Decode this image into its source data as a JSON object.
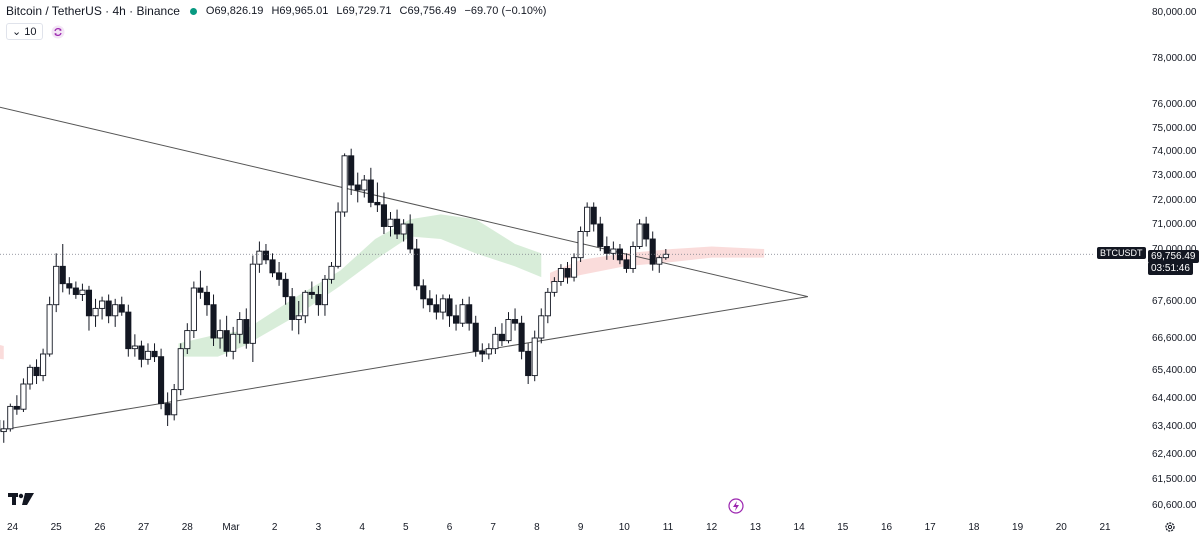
{
  "header": {
    "symbol": "Bitcoin / TetherUS · 4h · Binance",
    "o_label": "O",
    "o_value": "69,826.19",
    "h_label": "H",
    "h_value": "69,965.01",
    "l_label": "L",
    "l_value": "69,729.71",
    "c_label": "C",
    "c_value": "69,756.49",
    "change": "−69.70 (−0.10%)",
    "indicator_value": "10"
  },
  "price_tag": {
    "symbol": "BTCUSDT",
    "price": "69,756.49",
    "countdown": "03:51:46"
  },
  "colors": {
    "up": "#ffffff",
    "down": "#131722",
    "cloud_bull": "#c8e6c9",
    "cloud_bear": "#f8d0cf",
    "trendline": "#555555",
    "accent": "#9c27b0",
    "live_dot": "#089981"
  },
  "icons": [
    "tradingview-logo-icon",
    "chevron-down-icon",
    "sync-icon",
    "lightning-icon",
    "gear-icon"
  ],
  "chart_data": {
    "type": "candlestick",
    "title": "",
    "y_ticks": [
      "80,000.00",
      "78,000.00",
      "76,000.00",
      "75,000.00",
      "74,000.00",
      "73,000.00",
      "72,000.00",
      "71,000.00",
      "70,000.00",
      "67,600.00",
      "66,600.00",
      "65,400.00",
      "64,400.00",
      "63,400.00",
      "62,400.00",
      "61,500.00",
      "60,600.00"
    ],
    "y_tick_values": [
      80000,
      78000,
      76000,
      75000,
      74000,
      73000,
      72000,
      71000,
      70000,
      67600,
      66600,
      65400,
      64400,
      63400,
      62400,
      61500,
      60600
    ],
    "x_ticks": [
      "24",
      "25",
      "26",
      "27",
      "28",
      "Mar",
      "2",
      "3",
      "4",
      "5",
      "6",
      "7",
      "8",
      "9",
      "10",
      "11",
      "12",
      "13",
      "14",
      "15",
      "16",
      "17",
      "18",
      "19",
      "20",
      "21"
    ],
    "x_tick_days": [
      -5,
      -4,
      -3,
      -2,
      -1,
      0,
      1,
      2,
      3,
      4,
      5,
      6,
      7,
      8,
      9,
      10,
      11,
      12,
      13,
      14,
      15,
      16,
      17,
      18,
      19,
      20
    ],
    "candles": [
      [
        -5.8,
        65200,
        65400,
        64300,
        64600
      ],
      [
        -5.65,
        64600,
        64900,
        64000,
        64200
      ],
      [
        -5.5,
        64200,
        64400,
        63300,
        63600
      ],
      [
        -5.35,
        63600,
        63800,
        62900,
        63200
      ],
      [
        -5.2,
        63200,
        63600,
        62800,
        63300
      ],
      [
        -5.05,
        63300,
        64200,
        63200,
        64100
      ],
      [
        -4.9,
        64100,
        64500,
        63800,
        64000
      ],
      [
        -4.75,
        64000,
        65100,
        63900,
        64900
      ],
      [
        -4.6,
        64900,
        65600,
        64700,
        65500
      ],
      [
        -4.45,
        65500,
        65800,
        64900,
        65200
      ],
      [
        -4.3,
        65200,
        66200,
        65000,
        66000
      ],
      [
        -4.15,
        66000,
        67800,
        65900,
        67500
      ],
      [
        -4.0,
        67500,
        69800,
        67300,
        69200
      ],
      [
        -3.85,
        69200,
        70200,
        68000,
        68400
      ],
      [
        -3.7,
        68400,
        68700,
        67900,
        68200
      ],
      [
        -3.55,
        68200,
        68500,
        67700,
        67900
      ],
      [
        -3.4,
        67900,
        68400,
        67600,
        68100
      ],
      [
        -3.25,
        68100,
        68300,
        66800,
        67200
      ],
      [
        -3.1,
        67200,
        67700,
        66900,
        67400
      ],
      [
        -2.95,
        67400,
        67800,
        67100,
        67600
      ],
      [
        -2.8,
        67600,
        67900,
        67000,
        67200
      ],
      [
        -2.65,
        67200,
        67700,
        66900,
        67500
      ],
      [
        -2.5,
        67500,
        67800,
        67200,
        67300
      ],
      [
        -2.35,
        67300,
        67500,
        65900,
        66200
      ],
      [
        -2.2,
        66200,
        66700,
        65900,
        66300
      ],
      [
        -2.05,
        66300,
        66500,
        65500,
        65800
      ],
      [
        -1.9,
        65800,
        66400,
        65600,
        66100
      ],
      [
        -1.75,
        66100,
        66400,
        65700,
        65900
      ],
      [
        -1.6,
        65900,
        66200,
        64000,
        64200
      ],
      [
        -1.45,
        64200,
        64600,
        63400,
        63800
      ],
      [
        -1.3,
        63800,
        64900,
        63600,
        64700
      ],
      [
        -1.15,
        64700,
        66400,
        64500,
        66200
      ],
      [
        -1.0,
        66200,
        67000,
        66000,
        66800
      ],
      [
        -0.85,
        66800,
        68500,
        66600,
        68200
      ],
      [
        -0.7,
        68200,
        69000,
        67700,
        68000
      ],
      [
        -0.55,
        68000,
        68300,
        67200,
        67500
      ],
      [
        -0.4,
        67500,
        67900,
        66300,
        66600
      ],
      [
        -0.25,
        66600,
        67100,
        66200,
        66800
      ],
      [
        -0.1,
        66800,
        67200,
        65900,
        66100
      ],
      [
        0.05,
        66100,
        66900,
        65800,
        66700
      ],
      [
        0.2,
        66700,
        67300,
        66400,
        67100
      ],
      [
        0.35,
        67100,
        67400,
        66200,
        66400
      ],
      [
        0.5,
        66400,
        69700,
        65700,
        69300
      ],
      [
        0.65,
        69300,
        70300,
        68900,
        69900
      ],
      [
        0.8,
        69900,
        70200,
        69300,
        69500
      ],
      [
        0.95,
        69500,
        69800,
        68700,
        68900
      ],
      [
        1.1,
        68900,
        69400,
        68300,
        68600
      ],
      [
        1.25,
        68600,
        68900,
        67500,
        67800
      ],
      [
        1.4,
        67800,
        68200,
        66800,
        67100
      ],
      [
        1.55,
        67100,
        67600,
        66700,
        67200
      ],
      [
        1.7,
        67200,
        68100,
        67000,
        68000
      ],
      [
        1.85,
        68000,
        68500,
        67700,
        67900
      ],
      [
        2.0,
        67900,
        68300,
        67200,
        67500
      ],
      [
        2.15,
        67500,
        68800,
        67200,
        68600
      ],
      [
        2.3,
        68600,
        69400,
        68400,
        69200
      ],
      [
        2.45,
        69200,
        71900,
        69100,
        71500
      ],
      [
        2.6,
        71500,
        73900,
        71300,
        73800
      ],
      [
        2.75,
        73800,
        74100,
        72200,
        72600
      ],
      [
        2.9,
        72600,
        73100,
        71900,
        72400
      ],
      [
        3.05,
        72400,
        73000,
        72100,
        72800
      ],
      [
        3.2,
        72800,
        73300,
        71700,
        71900
      ],
      [
        3.35,
        71900,
        72700,
        71500,
        71800
      ],
      [
        3.5,
        71800,
        72300,
        70600,
        70900
      ],
      [
        3.65,
        70900,
        71500,
        70500,
        71200
      ],
      [
        3.8,
        71200,
        71600,
        70400,
        70600
      ],
      [
        3.95,
        70600,
        71200,
        70300,
        71000
      ],
      [
        4.1,
        71000,
        71400,
        69800,
        70000
      ],
      [
        4.25,
        70000,
        70400,
        68100,
        68300
      ],
      [
        4.4,
        68300,
        68600,
        67400,
        67700
      ],
      [
        4.55,
        67700,
        68100,
        67300,
        67500
      ],
      [
        4.7,
        67500,
        67900,
        67100,
        67300
      ],
      [
        4.85,
        67300,
        67900,
        67100,
        67700
      ],
      [
        5.0,
        67700,
        67900,
        66900,
        67200
      ],
      [
        5.15,
        67200,
        67500,
        66800,
        67000
      ],
      [
        5.3,
        67000,
        67700,
        66900,
        67500
      ],
      [
        5.45,
        67500,
        67800,
        66800,
        67000
      ],
      [
        5.6,
        67000,
        67200,
        65900,
        66100
      ],
      [
        5.75,
        66100,
        66400,
        65700,
        66000
      ],
      [
        5.9,
        66000,
        66400,
        65800,
        66200
      ],
      [
        6.05,
        66200,
        66900,
        66000,
        66700
      ],
      [
        6.2,
        66700,
        67000,
        66300,
        66500
      ],
      [
        6.35,
        66500,
        67300,
        66400,
        67100
      ],
      [
        6.5,
        67100,
        67400,
        66800,
        67000
      ],
      [
        6.65,
        67000,
        67200,
        65800,
        66100
      ],
      [
        6.8,
        66100,
        66400,
        64900,
        65200
      ],
      [
        6.95,
        65200,
        66800,
        65000,
        66600
      ],
      [
        7.1,
        66600,
        67400,
        66400,
        67200
      ],
      [
        7.25,
        67200,
        68200,
        67000,
        68000
      ],
      [
        7.4,
        68000,
        68700,
        67800,
        68500
      ],
      [
        7.55,
        68500,
        69300,
        68300,
        69100
      ],
      [
        7.7,
        69100,
        69400,
        68400,
        68700
      ],
      [
        7.85,
        68700,
        69800,
        68500,
        69600
      ],
      [
        8.0,
        69600,
        70900,
        69400,
        70700
      ],
      [
        8.15,
        70700,
        71900,
        70500,
        71700
      ],
      [
        8.3,
        71700,
        71900,
        70700,
        71000
      ],
      [
        8.45,
        71000,
        71300,
        69900,
        70100
      ],
      [
        8.6,
        70100,
        70500,
        69500,
        69800
      ],
      [
        8.75,
        69800,
        70300,
        69500,
        70000
      ],
      [
        8.9,
        70000,
        70200,
        69300,
        69500
      ],
      [
        9.05,
        69500,
        69800,
        68900,
        69100
      ],
      [
        9.2,
        69100,
        70300,
        68900,
        70100
      ],
      [
        9.35,
        70100,
        71200,
        70000,
        71000
      ],
      [
        9.5,
        71000,
        71300,
        70100,
        70400
      ],
      [
        9.65,
        70400,
        70700,
        69000,
        69300
      ],
      [
        9.8,
        69300,
        69700,
        68900,
        69600
      ],
      [
        9.95,
        69600,
        70000,
        69500,
        69756
      ]
    ],
    "ichimoku_bull": [
      [
        -1.2,
        65900,
        66400
      ],
      [
        -0.3,
        65900,
        66700
      ],
      [
        0.3,
        66300,
        66800
      ],
      [
        1.5,
        67200,
        67800
      ],
      [
        2.5,
        68300,
        69000
      ],
      [
        3.3,
        69500,
        70400
      ],
      [
        4.1,
        70500,
        71200
      ],
      [
        4.8,
        70400,
        71400
      ],
      [
        5.6,
        69800,
        71200
      ],
      [
        6.5,
        69200,
        70200
      ],
      [
        7.1,
        68700,
        69800
      ]
    ],
    "ichimoku_bear": [
      [
        -9.6,
        67400,
        67900
      ],
      [
        -8.2,
        67200,
        67800
      ],
      [
        -7.4,
        66300,
        67000
      ],
      [
        -6.2,
        66000,
        66700
      ],
      [
        -5.2,
        65800,
        66300
      ],
      [
        7.3,
        68400,
        68900
      ],
      [
        8.0,
        68800,
        69500
      ],
      [
        9.0,
        69200,
        69800
      ],
      [
        10.1,
        69400,
        70000
      ],
      [
        11.0,
        69600,
        70100
      ],
      [
        12.2,
        69600,
        70000
      ]
    ],
    "trendlines": [
      {
        "from": [
          -5.6,
          76000
        ],
        "to": [
          13.2,
          67800
        ]
      },
      {
        "from": [
          -8.6,
          62400
        ],
        "to": [
          13.2,
          67800
        ]
      }
    ],
    "last_price": 69756.49,
    "grid": false
  }
}
